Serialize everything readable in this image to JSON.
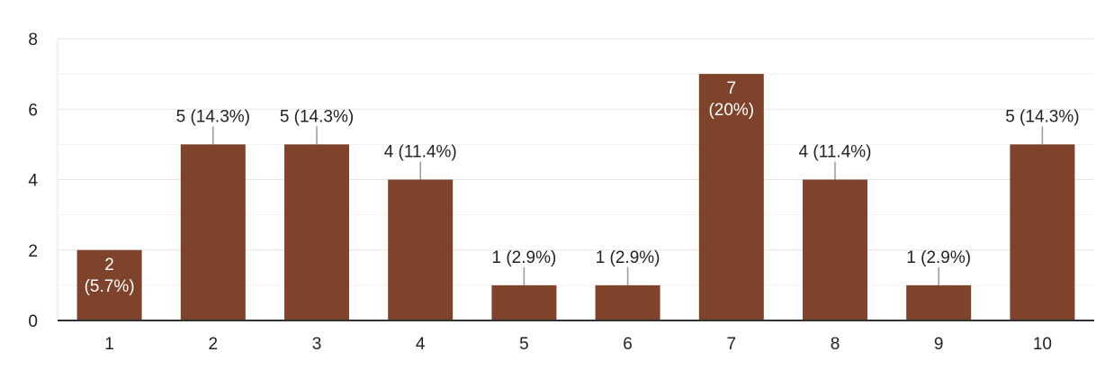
{
  "chart_data": {
    "type": "bar",
    "categories": [
      "1",
      "2",
      "3",
      "4",
      "5",
      "6",
      "7",
      "8",
      "9",
      "10"
    ],
    "values": [
      2,
      5,
      5,
      4,
      1,
      1,
      7,
      4,
      1,
      5
    ],
    "data_labels": [
      [
        "2",
        "(5.7%)"
      ],
      [
        "5 (14.3%)"
      ],
      [
        "5 (14.3%)"
      ],
      [
        "4 (11.4%)"
      ],
      [
        "1 (2.9%)"
      ],
      [
        "1 (2.9%)"
      ],
      [
        "7",
        "(20%)"
      ],
      [
        "4 (11.4%)"
      ],
      [
        "1 (2.9%)"
      ],
      [
        "5 (14.3%)"
      ]
    ],
    "label_inside_bar": [
      true,
      false,
      false,
      false,
      false,
      false,
      true,
      false,
      false,
      false
    ],
    "y_ticks": [
      "0",
      "2",
      "4",
      "6",
      "8"
    ],
    "ylim": [
      0,
      8
    ],
    "grid": true,
    "title": "",
    "xlabel": "",
    "ylabel": "",
    "colors": {
      "bar": "#7f432b",
      "grid_major": "#e6e6e6",
      "grid_minor": "#f3f3f3",
      "axis": "#333333",
      "text": "#222222",
      "leader": "#999999",
      "inner_text": "#ffffff"
    }
  }
}
